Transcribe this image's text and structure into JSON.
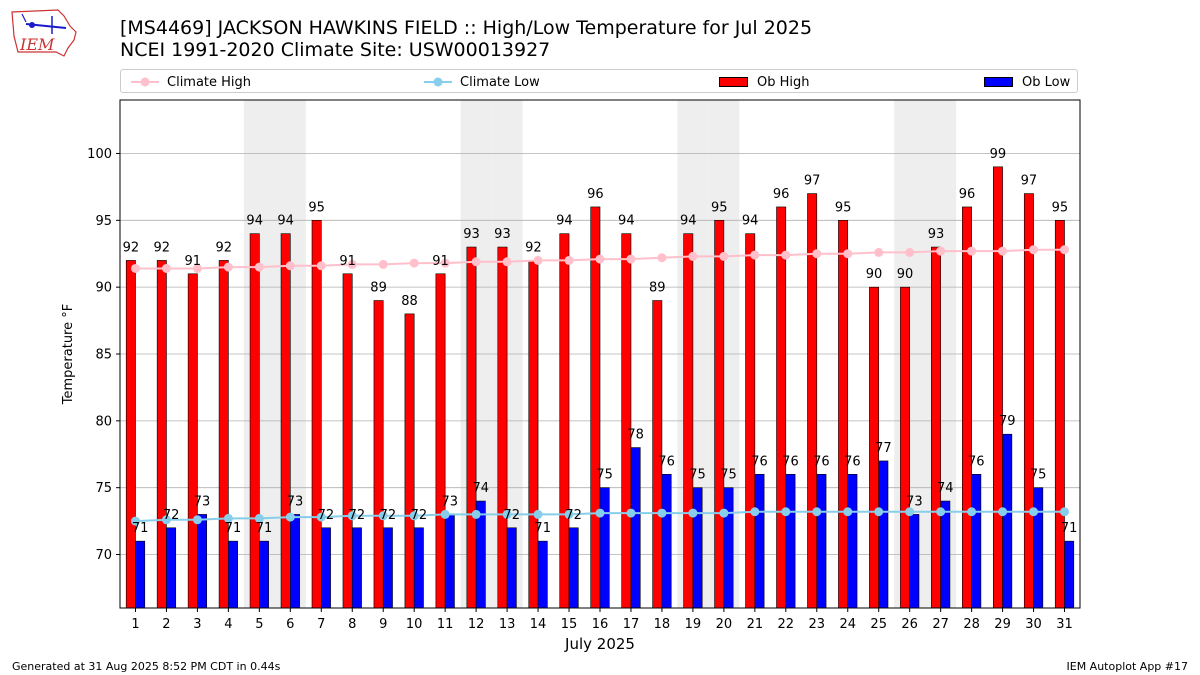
{
  "header": {
    "logo_text": "IEM",
    "title_line1": "[MS4469] JACKSON HAWKINS FIELD :: High/Low Temperature for Jul 2025",
    "title_line2": "NCEI 1991-2020 Climate Site: USW00013927"
  },
  "legend": {
    "climate_high": "Climate High",
    "climate_low": "Climate Low",
    "ob_high": "Ob High",
    "ob_low": "Ob Low"
  },
  "footer": {
    "generated": "Generated at 31 Aug 2025 8:52 PM CDT in 0.44s",
    "app": "IEM Autoplot App #17"
  },
  "colors": {
    "ob_high": "#ff0000",
    "ob_low": "#0000ff",
    "climate_high": "#ffc0cb",
    "climate_low": "#87ceeb",
    "weekend_shade": "#eeeeee",
    "grid": "#b0b0b0"
  },
  "chart_data": {
    "type": "bar",
    "xlabel": "July 2025",
    "ylabel": "Temperature °F",
    "ylim": [
      66,
      104
    ],
    "yticks": [
      70,
      75,
      80,
      85,
      90,
      95,
      100
    ],
    "grid": "horizontal",
    "legend_position": "top",
    "x": [
      1,
      2,
      3,
      4,
      5,
      6,
      7,
      8,
      9,
      10,
      11,
      12,
      13,
      14,
      15,
      16,
      17,
      18,
      19,
      20,
      21,
      22,
      23,
      24,
      25,
      26,
      27,
      28,
      29,
      30,
      31
    ],
    "shaded_days": [
      5,
      6,
      12,
      13,
      19,
      20,
      26,
      27
    ],
    "series": [
      {
        "name": "Ob High",
        "kind": "bar",
        "values": [
          92,
          92,
          91,
          92,
          94,
          94,
          95,
          91,
          89,
          88,
          91,
          93,
          93,
          92,
          94,
          96,
          94,
          89,
          94,
          95,
          94,
          96,
          97,
          95,
          90,
          90,
          93,
          96,
          99,
          97,
          95
        ]
      },
      {
        "name": "Ob Low",
        "kind": "bar",
        "values": [
          71,
          72,
          73,
          71,
          71,
          73,
          72,
          72,
          72,
          72,
          73,
          74,
          72,
          71,
          72,
          75,
          78,
          76,
          75,
          75,
          76,
          76,
          76,
          76,
          77,
          73,
          74,
          76,
          79,
          75,
          71
        ]
      },
      {
        "name": "Climate High",
        "kind": "line",
        "values": [
          91.4,
          91.4,
          91.4,
          91.5,
          91.5,
          91.6,
          91.6,
          91.7,
          91.7,
          91.8,
          91.8,
          91.9,
          91.9,
          92.0,
          92.0,
          92.1,
          92.1,
          92.2,
          92.3,
          92.3,
          92.4,
          92.4,
          92.5,
          92.5,
          92.6,
          92.6,
          92.7,
          92.7,
          92.7,
          92.8,
          92.8
        ]
      },
      {
        "name": "Climate Low",
        "kind": "line",
        "values": [
          72.5,
          72.6,
          72.6,
          72.7,
          72.7,
          72.8,
          72.8,
          72.9,
          72.9,
          72.9,
          73.0,
          73.0,
          73.0,
          73.0,
          73.0,
          73.1,
          73.1,
          73.1,
          73.1,
          73.1,
          73.2,
          73.2,
          73.2,
          73.2,
          73.2,
          73.2,
          73.2,
          73.2,
          73.2,
          73.2,
          73.2
        ]
      }
    ]
  }
}
